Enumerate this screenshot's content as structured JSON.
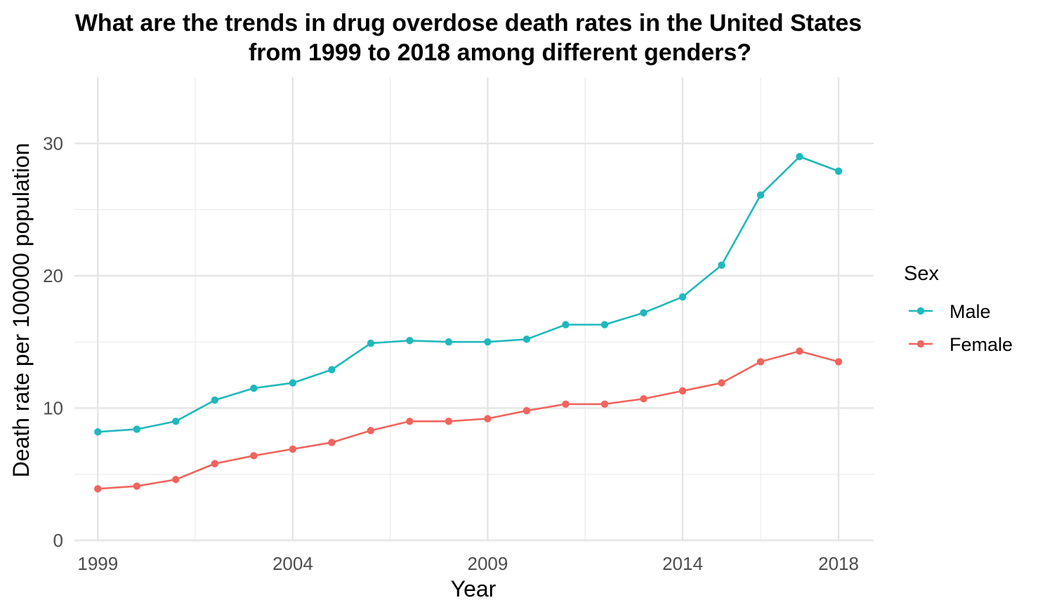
{
  "chart_data": {
    "type": "line",
    "title_line1": "What are the trends in drug overdose death rates in the United States",
    "title_line2": "from 1999 to 2018 among different genders?",
    "xlabel": "Year",
    "ylabel": "Death rate per 100000  population",
    "x": [
      1999,
      2000,
      2001,
      2002,
      2003,
      2004,
      2005,
      2006,
      2007,
      2008,
      2009,
      2010,
      2011,
      2012,
      2013,
      2014,
      2015,
      2016,
      2017,
      2018
    ],
    "x_ticks": [
      "1999",
      "2004",
      "2009",
      "2014",
      "2018"
    ],
    "y_ticks": [
      "0",
      "10",
      "20",
      "30"
    ],
    "xlim": [
      1998.4,
      2018.9
    ],
    "ylim": [
      0,
      35
    ],
    "grid": true,
    "legend": {
      "title": "Sex",
      "position": "right"
    },
    "series": [
      {
        "name": "Male",
        "color": "#1FB8BC",
        "values": [
          8.2,
          8.4,
          9.0,
          10.6,
          11.5,
          11.9,
          12.9,
          14.9,
          15.1,
          15.0,
          15.0,
          15.2,
          16.3,
          16.3,
          17.2,
          18.4,
          20.8,
          26.1,
          29.0,
          27.9
        ]
      },
      {
        "name": "Female",
        "color": "#F0645E",
        "values": [
          3.9,
          4.1,
          4.6,
          5.8,
          6.4,
          6.9,
          7.4,
          8.3,
          9.0,
          9.0,
          9.2,
          9.8,
          10.3,
          10.3,
          10.7,
          11.3,
          11.9,
          13.5,
          14.3,
          13.5
        ]
      }
    ]
  }
}
